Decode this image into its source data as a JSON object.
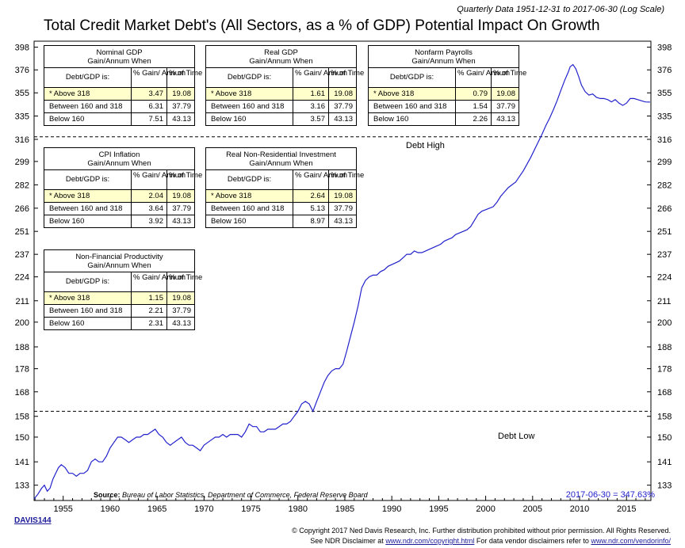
{
  "subtitle": "Quarterly Data 1951-12-31 to 2017-06-30 (Log Scale)",
  "title": "Total Credit Market Debt's (All Sectors, as a % of GDP) Potential Impact On Growth",
  "debt_high_label": "Debt High",
  "debt_low_label": "Debt Low",
  "source_label": "Source:",
  "source_text": "Bureau of Labor Statistics, Department of Commerce, Federal Reserve Board",
  "last_value": "2017-06-30 = 347.63%",
  "davis_code": "DAVIS144",
  "copyright_line1": "© Copyright 2017 Ned Davis Research, Inc. Further distribution prohibited without prior permission. All Rights Reserved.",
  "copyright_line2_a": "See NDR Disclaimer at",
  "copyright_link1": "www.ndr.com/copyright.html",
  "copyright_line2_b": "For data vendor disclaimers refer to",
  "copyright_link2": "www.ndr.com/vendorinfo/",
  "tables": [
    {
      "title": "Nominal GDP",
      "subtitle": "Gain/Annum When",
      "col1": "Debt/GDP is:",
      "col2": "% Gain/ Annum",
      "col3": "% of Time",
      "rows": [
        {
          "label": "* Above 318",
          "gain": "3.47",
          "time": "19.08"
        },
        {
          "label": "Between 160 and 318",
          "gain": "6.31",
          "time": "37.79"
        },
        {
          "label": "Below 160",
          "gain": "7.51",
          "time": "43.13"
        }
      ]
    },
    {
      "title": "Real GDP",
      "subtitle": "Gain/Annum When",
      "col1": "Debt/GDP is:",
      "col2": "% Gain/ Annum",
      "col3": "% of Time",
      "rows": [
        {
          "label": "* Above 318",
          "gain": "1.61",
          "time": "19.08"
        },
        {
          "label": "Between 160 and 318",
          "gain": "3.16",
          "time": "37.79"
        },
        {
          "label": "Below 160",
          "gain": "3.57",
          "time": "43.13"
        }
      ]
    },
    {
      "title": "Nonfarm Payrolls",
      "subtitle": "Gain/Annum When",
      "col1": "Debt/GDP is:",
      "col2": "% Gain/ Annum",
      "col3": "% of Time",
      "rows": [
        {
          "label": "* Above 318",
          "gain": "0.79",
          "time": "19.08"
        },
        {
          "label": "Between 160 and 318",
          "gain": "1.54",
          "time": "37.79"
        },
        {
          "label": "Below 160",
          "gain": "2.26",
          "time": "43.13"
        }
      ]
    },
    {
      "title": "CPI Inflation",
      "subtitle": "Gain/Annum When",
      "col1": "Debt/GDP is:",
      "col2": "% Gain/ Annum",
      "col3": "% of Time",
      "rows": [
        {
          "label": "* Above 318",
          "gain": "2.04",
          "time": "19.08"
        },
        {
          "label": "Between 160 and 318",
          "gain": "3.64",
          "time": "37.79"
        },
        {
          "label": "Below 160",
          "gain": "3.92",
          "time": "43.13"
        }
      ]
    },
    {
      "title": "Real Non-Residential Investment",
      "subtitle": "Gain/Annum When",
      "col1": "Debt/GDP is:",
      "col2": "% Gain/ Annum",
      "col3": "% of Time",
      "rows": [
        {
          "label": "* Above 318",
          "gain": "2.64",
          "time": "19.08"
        },
        {
          "label": "Between 160 and 318",
          "gain": "5.13",
          "time": "37.79"
        },
        {
          "label": "Below 160",
          "gain": "8.97",
          "time": "43.13"
        }
      ]
    },
    {
      "title": "Non-Financial Productivity",
      "subtitle": "Gain/Annum When",
      "col1": "Debt/GDP is:",
      "col2": "% Gain/ Annum",
      "col3": "% of Time",
      "rows": [
        {
          "label": "* Above 318",
          "gain": "1.15",
          "time": "19.08"
        },
        {
          "label": "Between 160 and 318",
          "gain": "2.21",
          "time": "37.79"
        },
        {
          "label": "Below 160",
          "gain": "2.31",
          "time": "43.13"
        }
      ]
    }
  ],
  "chart_data": {
    "type": "line",
    "title": "Total Credit Market Debt's (All Sectors, as a % of GDP) Potential Impact On Growth",
    "log_scale": true,
    "x_range": [
      1951.9,
      2017.6
    ],
    "y_range": [
      128,
      404
    ],
    "y_ticks": [
      133,
      141,
      150,
      158,
      168,
      178,
      188,
      200,
      211,
      224,
      237,
      251,
      266,
      282,
      299,
      316,
      335,
      355,
      376,
      398
    ],
    "x_ticks": [
      1955,
      1960,
      1965,
      1970,
      1975,
      1980,
      1985,
      1990,
      1995,
      2000,
      2005,
      2010,
      2015
    ],
    "reference_lines": [
      {
        "value": 318,
        "label": "Debt High"
      },
      {
        "value": 160,
        "label": "Debt Low"
      }
    ],
    "grid": false,
    "series": [
      {
        "color": "#2222cc",
        "points": [
          [
            1951.9,
            128.5
          ],
          [
            1952.3,
            130
          ],
          [
            1952.7,
            132
          ],
          [
            1953.0,
            133
          ],
          [
            1953.3,
            131
          ],
          [
            1953.6,
            132
          ],
          [
            1953.9,
            135
          ],
          [
            1954.2,
            137
          ],
          [
            1954.5,
            139
          ],
          [
            1954.8,
            140
          ],
          [
            1955.2,
            139
          ],
          [
            1955.6,
            137
          ],
          [
            1956.0,
            137
          ],
          [
            1956.4,
            136
          ],
          [
            1956.8,
            137
          ],
          [
            1957.2,
            137
          ],
          [
            1957.6,
            138
          ],
          [
            1958.0,
            141
          ],
          [
            1958.4,
            142
          ],
          [
            1958.8,
            141
          ],
          [
            1959.2,
            141
          ],
          [
            1959.6,
            143
          ],
          [
            1960.0,
            146
          ],
          [
            1960.4,
            148
          ],
          [
            1960.8,
            150
          ],
          [
            1961.2,
            150
          ],
          [
            1961.6,
            149
          ],
          [
            1962.0,
            148
          ],
          [
            1962.4,
            149
          ],
          [
            1962.8,
            150
          ],
          [
            1963.2,
            150
          ],
          [
            1963.6,
            151
          ],
          [
            1964.0,
            151
          ],
          [
            1964.4,
            152
          ],
          [
            1964.8,
            153
          ],
          [
            1965.2,
            151
          ],
          [
            1965.6,
            150
          ],
          [
            1966.0,
            148
          ],
          [
            1966.4,
            147
          ],
          [
            1966.8,
            148
          ],
          [
            1967.2,
            149
          ],
          [
            1967.6,
            150
          ],
          [
            1968.0,
            148
          ],
          [
            1968.4,
            147
          ],
          [
            1968.8,
            147
          ],
          [
            1969.2,
            146
          ],
          [
            1969.6,
            145
          ],
          [
            1970.0,
            147
          ],
          [
            1970.4,
            148
          ],
          [
            1970.8,
            149
          ],
          [
            1971.2,
            150
          ],
          [
            1971.6,
            150
          ],
          [
            1972.0,
            151
          ],
          [
            1972.4,
            150
          ],
          [
            1972.8,
            151
          ],
          [
            1973.2,
            151
          ],
          [
            1973.6,
            151
          ],
          [
            1974.0,
            150
          ],
          [
            1974.4,
            152
          ],
          [
            1974.8,
            155
          ],
          [
            1975.2,
            154
          ],
          [
            1975.6,
            154
          ],
          [
            1976.0,
            152
          ],
          [
            1976.4,
            152
          ],
          [
            1976.8,
            153
          ],
          [
            1977.2,
            153
          ],
          [
            1977.6,
            153
          ],
          [
            1978.0,
            154
          ],
          [
            1978.4,
            155
          ],
          [
            1978.8,
            155
          ],
          [
            1979.2,
            156
          ],
          [
            1979.6,
            158
          ],
          [
            1980.0,
            160
          ],
          [
            1980.4,
            163
          ],
          [
            1980.8,
            164
          ],
          [
            1981.2,
            163
          ],
          [
            1981.6,
            160
          ],
          [
            1982.0,
            164
          ],
          [
            1982.4,
            168
          ],
          [
            1982.8,
            172
          ],
          [
            1983.2,
            175
          ],
          [
            1983.6,
            177
          ],
          [
            1984.0,
            178
          ],
          [
            1984.4,
            178
          ],
          [
            1984.8,
            180
          ],
          [
            1985.2,
            186
          ],
          [
            1985.6,
            193
          ],
          [
            1986.0,
            200
          ],
          [
            1986.4,
            208
          ],
          [
            1986.8,
            218
          ],
          [
            1987.2,
            222
          ],
          [
            1987.6,
            224
          ],
          [
            1988.0,
            225
          ],
          [
            1988.4,
            225
          ],
          [
            1988.8,
            227
          ],
          [
            1989.2,
            228
          ],
          [
            1989.6,
            230
          ],
          [
            1990.0,
            231
          ],
          [
            1990.4,
            232
          ],
          [
            1990.8,
            233
          ],
          [
            1991.2,
            235
          ],
          [
            1991.6,
            237
          ],
          [
            1992.0,
            237
          ],
          [
            1992.4,
            239
          ],
          [
            1992.8,
            238
          ],
          [
            1993.2,
            238
          ],
          [
            1993.6,
            239
          ],
          [
            1994.0,
            240
          ],
          [
            1994.4,
            241
          ],
          [
            1994.8,
            242
          ],
          [
            1995.2,
            243
          ],
          [
            1995.6,
            245
          ],
          [
            1996.0,
            246
          ],
          [
            1996.4,
            247
          ],
          [
            1996.8,
            249
          ],
          [
            1997.2,
            250
          ],
          [
            1997.6,
            251
          ],
          [
            1998.0,
            252
          ],
          [
            1998.4,
            254
          ],
          [
            1998.8,
            258
          ],
          [
            1999.2,
            262
          ],
          [
            1999.6,
            264
          ],
          [
            2000.0,
            265
          ],
          [
            2000.4,
            266
          ],
          [
            2000.8,
            267
          ],
          [
            2001.2,
            270
          ],
          [
            2001.6,
            274
          ],
          [
            2002.0,
            277
          ],
          [
            2002.4,
            280
          ],
          [
            2002.8,
            282
          ],
          [
            2003.2,
            284
          ],
          [
            2003.6,
            288
          ],
          [
            2004.0,
            292
          ],
          [
            2004.4,
            297
          ],
          [
            2004.8,
            302
          ],
          [
            2005.2,
            308
          ],
          [
            2005.6,
            314
          ],
          [
            2006.0,
            320
          ],
          [
            2006.4,
            327
          ],
          [
            2006.8,
            333
          ],
          [
            2007.2,
            340
          ],
          [
            2007.6,
            348
          ],
          [
            2008.0,
            357
          ],
          [
            2008.4,
            366
          ],
          [
            2008.8,
            374
          ],
          [
            2009.0,
            379
          ],
          [
            2009.3,
            381
          ],
          [
            2009.6,
            377
          ],
          [
            2009.9,
            370
          ],
          [
            2010.2,
            362
          ],
          [
            2010.6,
            356
          ],
          [
            2011.0,
            353
          ],
          [
            2011.4,
            354
          ],
          [
            2011.8,
            351
          ],
          [
            2012.2,
            350
          ],
          [
            2012.6,
            350
          ],
          [
            2013.0,
            349
          ],
          [
            2013.4,
            347
          ],
          [
            2013.8,
            349
          ],
          [
            2014.2,
            346
          ],
          [
            2014.6,
            344
          ],
          [
            2015.0,
            346
          ],
          [
            2015.4,
            350
          ],
          [
            2015.8,
            350
          ],
          [
            2016.2,
            349
          ],
          [
            2016.6,
            348
          ],
          [
            2017.0,
            347
          ],
          [
            2017.5,
            346.9
          ]
        ]
      }
    ]
  }
}
